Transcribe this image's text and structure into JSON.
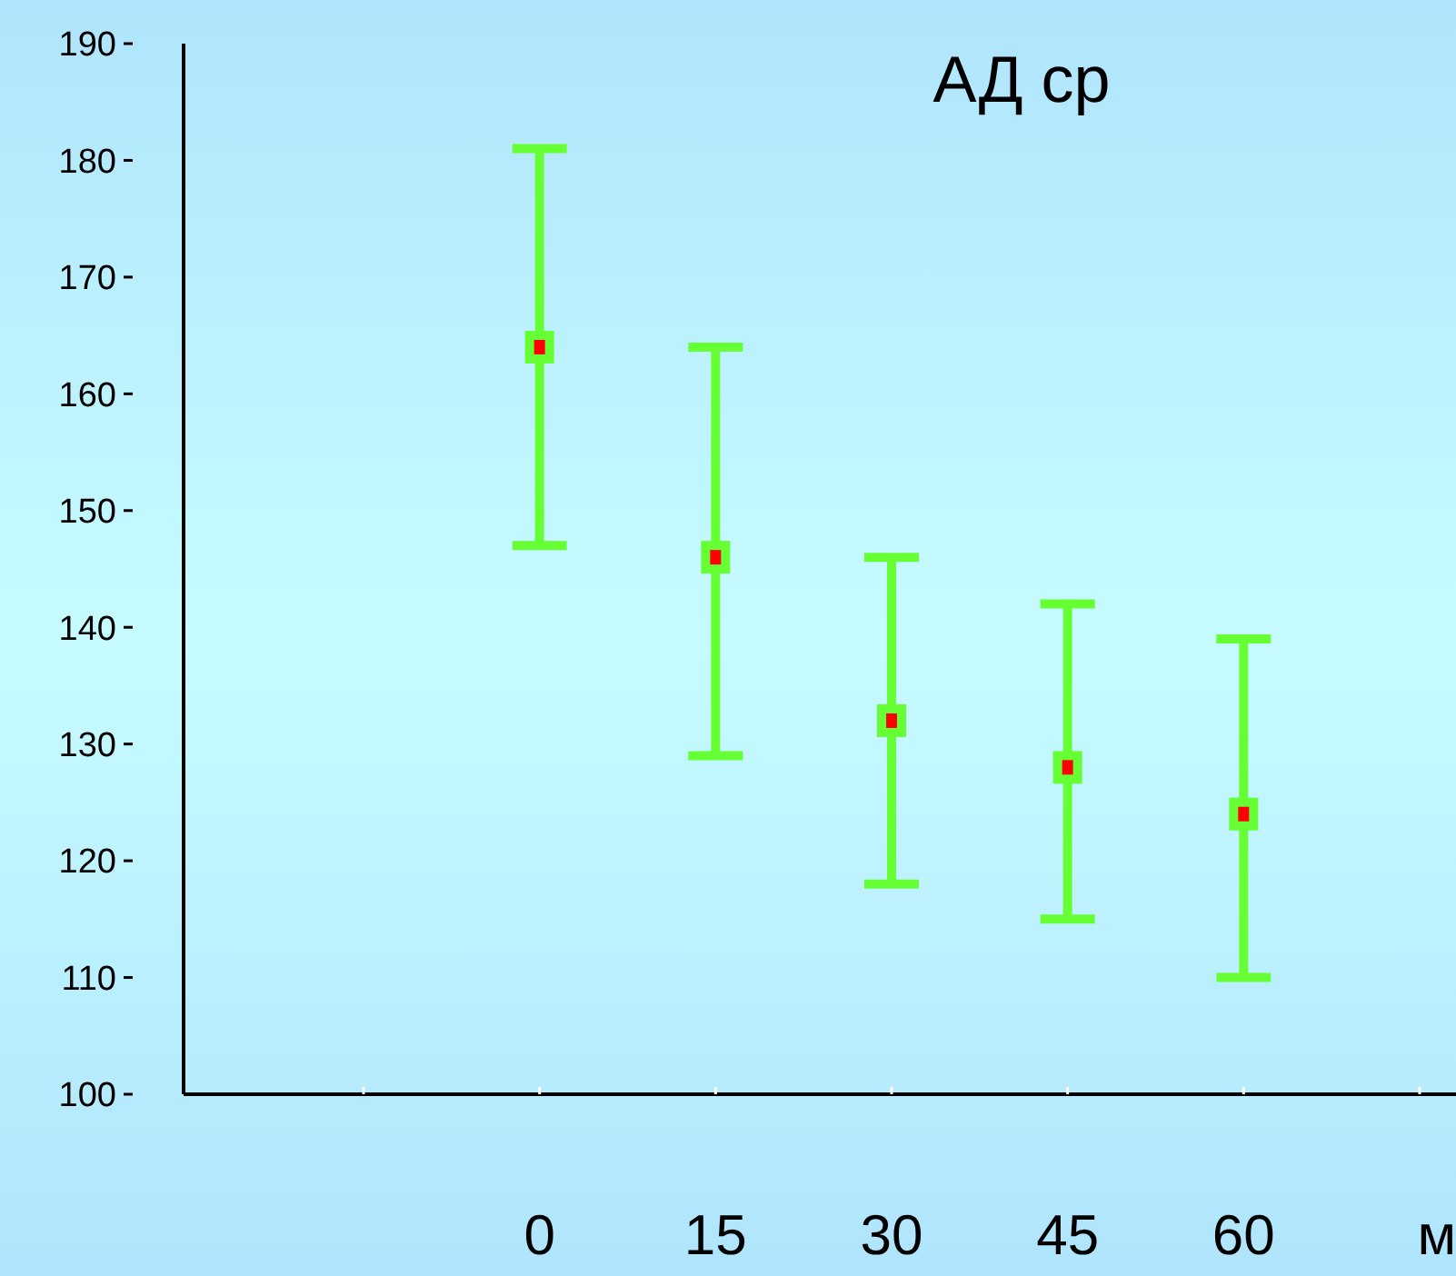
{
  "chart_data": {
    "type": "scatter",
    "title": "АД ср",
    "xlabel": "м",
    "categories": [
      null,
      "0",
      "15",
      "30",
      "45",
      "60",
      null
    ],
    "color": "#66ff33",
    "values": [
      null,
      164,
      146,
      132,
      128,
      124,
      null
    ],
    "errors": [
      null,
      [
        147,
        181
      ],
      [
        129,
        164
      ],
      [
        118,
        146
      ],
      [
        115,
        142
      ],
      [
        110,
        139
      ],
      null
    ],
    "ylim": [
      100,
      190
    ],
    "yticks": [
      100,
      110,
      120,
      130,
      140,
      150,
      160,
      170,
      180,
      190
    ],
    "marker": "square",
    "grid": false
  }
}
